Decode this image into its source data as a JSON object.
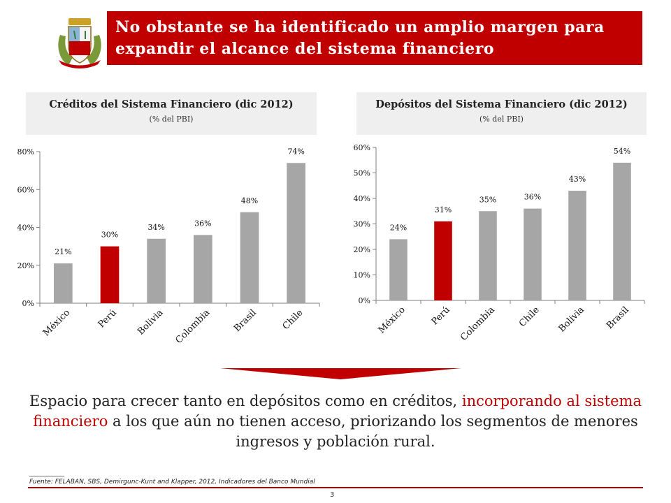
{
  "header": {
    "title_line1": "No obstante se ha identificado un amplio margen para",
    "title_line2": "expandir el alcance del sistema financiero"
  },
  "colors": {
    "accent": "#c00000",
    "bar": "#a6a6a6",
    "header_bg": "#efefef"
  },
  "chart_data": [
    {
      "type": "bar",
      "title": "Créditos del Sistema Financiero (dic 2012)",
      "subtitle": "(% del PBI)",
      "categories": [
        "México",
        "Perú",
        "Bolivia",
        "Colombia",
        "Brasil",
        "Chile"
      ],
      "values": [
        21,
        30,
        34,
        36,
        48,
        74
      ],
      "data_labels": [
        "21%",
        "30%",
        "34%",
        "36%",
        "48%",
        "74%"
      ],
      "highlight": "Perú",
      "ylim": [
        0,
        80
      ],
      "yticks": [
        0,
        20,
        40,
        60,
        80
      ],
      "ytick_labels": [
        "0%",
        "20%",
        "40%",
        "60%",
        "80%"
      ]
    },
    {
      "type": "bar",
      "title": "Depósitos del Sistema Financiero (dic 2012)",
      "subtitle": "(% del PBI)",
      "categories": [
        "México",
        "Perú",
        "Colombia",
        "Chile",
        "Bolivia",
        "Brasil"
      ],
      "values": [
        24,
        31,
        35,
        36,
        43,
        54
      ],
      "data_labels": [
        "24%",
        "31%",
        "35%",
        "36%",
        "43%",
        "54%"
      ],
      "highlight": "Perú",
      "ylim": [
        0,
        60
      ],
      "yticks": [
        0,
        10,
        20,
        30,
        40,
        50,
        60
      ],
      "ytick_labels": [
        "0%",
        "10%",
        "20%",
        "30%",
        "40%",
        "50%",
        "60%"
      ]
    }
  ],
  "message": {
    "part1": "Espacio para crecer tanto en depósitos como en créditos, ",
    "highlight": "incorporando al sistema financiero",
    "part2": " a los que aún no tienen acceso, priorizando los segmentos de menores ingresos y población rural."
  },
  "footer": {
    "underscore": "__________",
    "source": "Fuente: FELABAN, SBS, Demirgunc-Kunt and Klapper, 2012, Indicadores del Banco Mundial",
    "page_number": "3"
  }
}
